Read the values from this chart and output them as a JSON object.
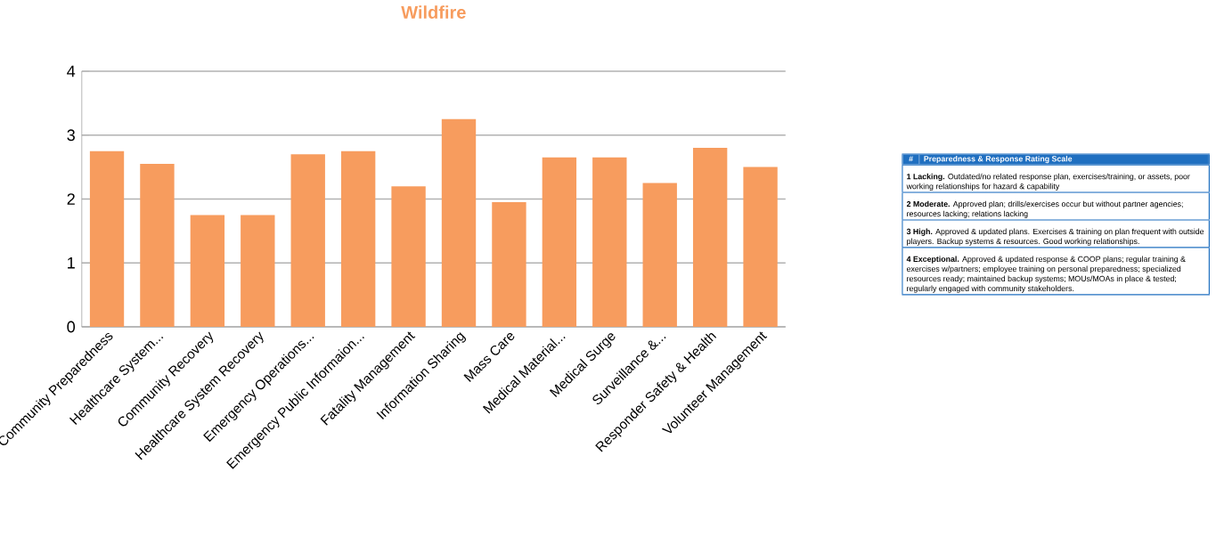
{
  "chart_data": [
    {
      "type": "bar",
      "title": "Wildfire",
      "color": "#f79c5e",
      "categories": [
        "Community Preparedness",
        "Healthcare System...",
        "Community Recovery",
        "Healthcare System Recovery",
        "Emergency Operations...",
        "Emergency Public Informaion...",
        "Fatality Management",
        "Information Sharing",
        "Mass Care",
        "Medical Material...",
        "Medical Surge",
        "Surveillance &...",
        "Responder Safety & Health",
        "Volunteer Management"
      ],
      "values": [
        2.75,
        2.55,
        1.75,
        1.75,
        2.7,
        2.75,
        2.2,
        3.25,
        1.95,
        2.65,
        2.65,
        2.25,
        2.8,
        2.5
      ],
      "ylim": [
        0,
        4
      ],
      "yticks": [
        0,
        1,
        2,
        3,
        4
      ],
      "grid": "y"
    },
    {
      "type": "other",
      "title": "Preparedness & Response Rating Scale",
      "annotations": [
        "#",
        "**1  Lacking.** Outdated/no related response plan, exercises/training, or assets, poor working relationships for hazard & capability",
        "**2  Moderate.** Approved plan; drills/exercises occur but without partner agencies; resources lacking; relations lacking",
        "**3  High.** Approved & updated plans. Exercises & training on plan frequent with outside players. Backup systems & resources. Good working relationships.",
        "**4  Exceptional.** Approved & updated response & COOP plans; regular training & exercises w/partners; employee training on personal preparedness; specialized resources ready; maintained backup systems; MOUs/MOAs in place & tested; regularly engaged with community stakeholders."
      ]
    }
  ]
}
